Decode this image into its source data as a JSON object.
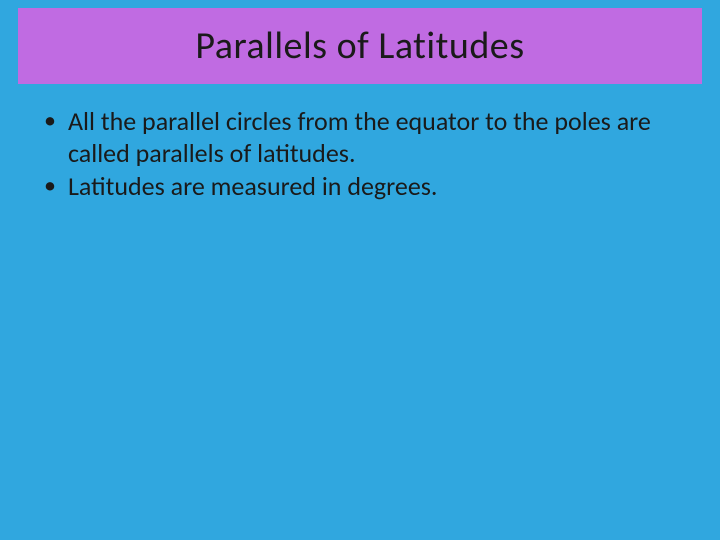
{
  "title": "Parallels of Latitudes",
  "bullets": [
    "All the parallel circles from the equator to the poles are called parallels of latitudes.",
    "Latitudes are measured in degrees."
  ],
  "style": {
    "background_color": "#30a7df",
    "title_background_color": "#c06be2",
    "title_text_color": "#1a1a1a",
    "bullet_text_color": "#1a1a1a",
    "title_fontsize": 38,
    "bullet_fontsize": 26
  }
}
